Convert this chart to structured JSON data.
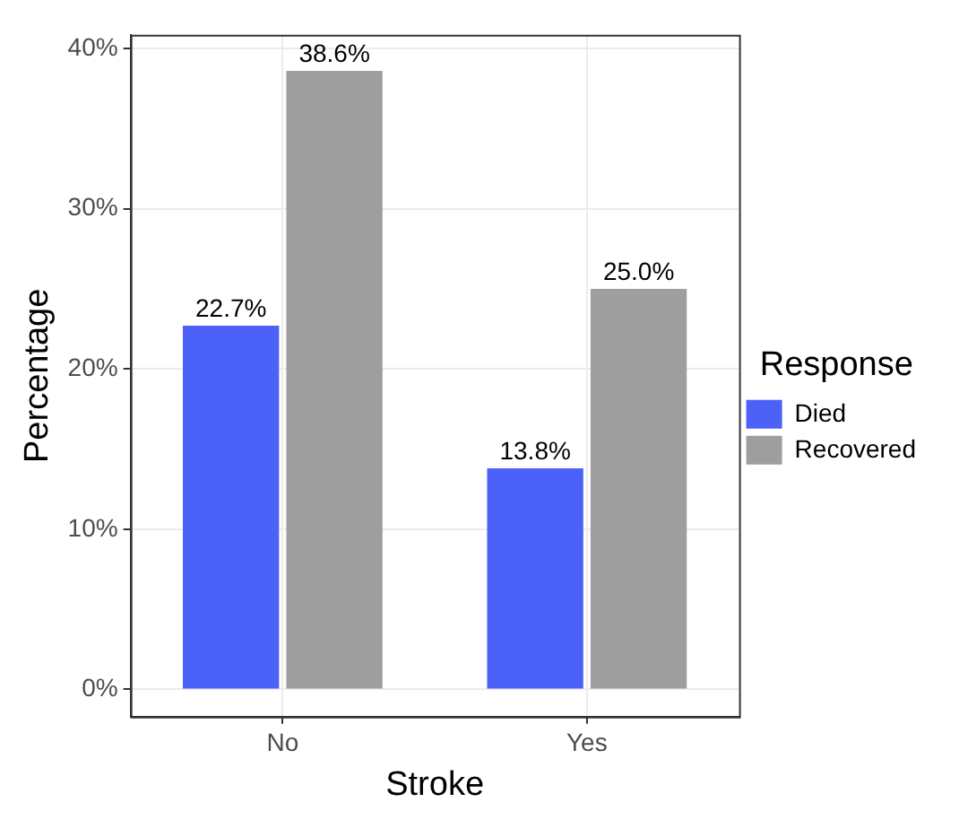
{
  "chart_data": {
    "type": "bar",
    "xlabel": "Stroke",
    "ylabel": "Percentage",
    "legend_title": "Response",
    "categories": [
      "No",
      "Yes"
    ],
    "series": [
      {
        "name": "Died",
        "color": "#4b61f7",
        "values": [
          22.7,
          13.8
        ],
        "value_labels": [
          "22.7%",
          "13.8%"
        ]
      },
      {
        "name": "Recovered",
        "color": "#9e9e9e",
        "values": [
          38.6,
          25.0
        ],
        "value_labels": [
          "38.6%",
          "25.0%"
        ]
      }
    ],
    "ylim": [
      -1.7,
      40.85
    ],
    "yticks": [
      {
        "value": 0,
        "label": "0%"
      },
      {
        "value": 10,
        "label": "10%"
      },
      {
        "value": 20,
        "label": "20%"
      },
      {
        "value": 30,
        "label": "30%"
      },
      {
        "value": 40,
        "label": "40%"
      }
    ],
    "grid": true,
    "legend": "right"
  }
}
